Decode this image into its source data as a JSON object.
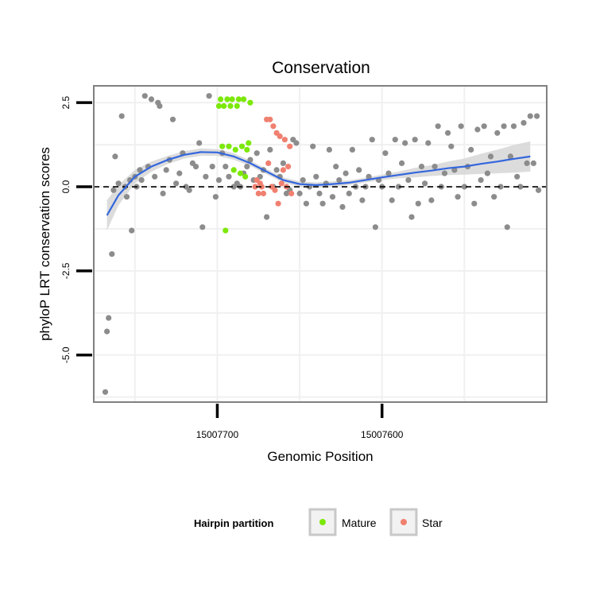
{
  "chart_data": {
    "type": "scatter",
    "title": "Conservation",
    "xlabel": "Genomic Position",
    "ylabel": "phyloP LRT conservation scores",
    "x_reversed": true,
    "xlim": [
      15007775,
      15007500
    ],
    "ylim": [
      -6.4,
      3.0
    ],
    "x_ticks": [
      15007700,
      15007600
    ],
    "x_tick_labels": [
      "15007700",
      "15007600"
    ],
    "y_ticks": [
      2.5,
      0.0,
      -2.5,
      -5.0
    ],
    "y_tick_labels": [
      "2.5",
      "0.0",
      "-2.5",
      "-5.0"
    ],
    "reference_line": {
      "y": 0,
      "style": "dashed"
    },
    "legend": {
      "title": "Hairpin partition",
      "position": "bottom",
      "entries": [
        {
          "label": "Mature",
          "color": "#7CE80A"
        },
        {
          "label": "Star",
          "color": "#F08070"
        }
      ]
    },
    "colors": {
      "other": "#8C8C8C",
      "mature": "#7CE80A",
      "star": "#F08070",
      "smooth": "#3366DD",
      "band": "#D6D6D6",
      "grid": "#F0F0F0",
      "panel_border": "#808080"
    },
    "smooth": {
      "method": "loess",
      "x": [
        15007767,
        15007760,
        15007750,
        15007740,
        15007730,
        15007720,
        15007710,
        15007700,
        15007690,
        15007680,
        15007670,
        15007660,
        15007650,
        15007640,
        15007630,
        15007620,
        15007610,
        15007600,
        15007590,
        15007580,
        15007570,
        15007560,
        15007550,
        15007540,
        15007530,
        15007520,
        15007510
      ],
      "y": [
        -0.85,
        -0.25,
        0.3,
        0.6,
        0.8,
        0.95,
        1.03,
        1.02,
        0.9,
        0.7,
        0.45,
        0.2,
        0.08,
        0.05,
        0.08,
        0.12,
        0.2,
        0.28,
        0.35,
        0.42,
        0.48,
        0.55,
        0.6,
        0.68,
        0.75,
        0.83,
        0.9
      ],
      "lower": [
        -1.3,
        -0.55,
        0.1,
        0.45,
        0.68,
        0.84,
        0.92,
        0.92,
        0.8,
        0.62,
        0.37,
        0.12,
        0.0,
        -0.03,
        0.0,
        0.05,
        0.13,
        0.2,
        0.25,
        0.28,
        0.32,
        0.35,
        0.36,
        0.38,
        0.4,
        0.42,
        0.45
      ],
      "upper": [
        -0.4,
        0.05,
        0.5,
        0.75,
        0.92,
        1.06,
        1.14,
        1.12,
        1.0,
        0.78,
        0.53,
        0.28,
        0.16,
        0.13,
        0.16,
        0.19,
        0.27,
        0.36,
        0.45,
        0.56,
        0.64,
        0.75,
        0.84,
        0.98,
        1.1,
        1.24,
        1.35
      ]
    },
    "series": [
      {
        "name": "Other",
        "points": [
          [
            15007768,
            -6.1
          ],
          [
            15007767,
            -4.3
          ],
          [
            15007766,
            -3.9
          ],
          [
            15007764,
            -2.0
          ],
          [
            15007763,
            -0.1
          ],
          [
            15007762,
            0.9
          ],
          [
            15007760,
            0.1
          ],
          [
            15007758,
            2.1
          ],
          [
            15007756,
            0.0
          ],
          [
            15007755,
            -0.3
          ],
          [
            15007753,
            0.2
          ],
          [
            15007752,
            -1.3
          ],
          [
            15007750,
            0.3
          ],
          [
            15007749,
            0.0
          ],
          [
            15007747,
            0.5
          ],
          [
            15007746,
            0.2
          ],
          [
            15007744,
            2.7
          ],
          [
            15007742,
            0.6
          ],
          [
            15007740,
            2.6
          ],
          [
            15007738,
            0.3
          ],
          [
            15007736,
            2.5
          ],
          [
            15007735,
            2.4
          ],
          [
            15007733,
            -0.2
          ],
          [
            15007731,
            0.5
          ],
          [
            15007729,
            0.8
          ],
          [
            15007727,
            2.0
          ],
          [
            15007725,
            0.1
          ],
          [
            15007723,
            0.4
          ],
          [
            15007721,
            1.0
          ],
          [
            15007719,
            0.0
          ],
          [
            15007717,
            -0.1
          ],
          [
            15007715,
            0.7
          ],
          [
            15007713,
            0.6
          ],
          [
            15007711,
            1.3
          ],
          [
            15007709,
            -1.2
          ],
          [
            15007707,
            0.3
          ],
          [
            15007705,
            2.7
          ],
          [
            15007703,
            0.6
          ],
          [
            15007701,
            -0.3
          ],
          [
            15007699,
            0.2
          ],
          [
            15007697,
            1.0
          ],
          [
            15007695,
            0.6
          ],
          [
            15007693,
            0.3
          ],
          [
            15007690,
            0.0
          ],
          [
            15007688,
            0.1
          ],
          [
            15007686,
            0.0
          ],
          [
            15007684,
            0.4
          ],
          [
            15007682,
            0.6
          ],
          [
            15007680,
            0.8
          ],
          [
            15007678,
            0.2
          ],
          [
            15007676,
            1.0
          ],
          [
            15007674,
            0.3
          ],
          [
            15007672,
            0.5
          ],
          [
            15007670,
            -0.9
          ],
          [
            15007668,
            1.1
          ],
          [
            15007666,
            0.0
          ],
          [
            15007664,
            0.5
          ],
          [
            15007662,
            0.3
          ],
          [
            15007660,
            0.7
          ],
          [
            15007658,
            -0.2
          ],
          [
            15007656,
            -0.1
          ],
          [
            15007654,
            1.4
          ],
          [
            15007652,
            1.3
          ],
          [
            15007650,
            -0.2
          ],
          [
            15007648,
            0.2
          ],
          [
            15007646,
            -0.5
          ],
          [
            15007644,
            0.0
          ],
          [
            15007642,
            1.2
          ],
          [
            15007640,
            0.3
          ],
          [
            15007638,
            -0.2
          ],
          [
            15007636,
            -0.5
          ],
          [
            15007634,
            0.1
          ],
          [
            15007632,
            1.1
          ],
          [
            15007630,
            -0.3
          ],
          [
            15007628,
            0.6
          ],
          [
            15007626,
            0.2
          ],
          [
            15007624,
            -0.6
          ],
          [
            15007622,
            0.4
          ],
          [
            15007620,
            -0.2
          ],
          [
            15007618,
            1.1
          ],
          [
            15007616,
            0.0
          ],
          [
            15007614,
            0.5
          ],
          [
            15007612,
            -0.4
          ],
          [
            15007610,
            0.0
          ],
          [
            15007608,
            0.3
          ],
          [
            15007606,
            1.4
          ],
          [
            15007604,
            -1.2
          ],
          [
            15007602,
            0.2
          ],
          [
            15007600,
            0.0
          ],
          [
            15007598,
            1.0
          ],
          [
            15007596,
            0.4
          ],
          [
            15007594,
            -0.4
          ],
          [
            15007592,
            1.4
          ],
          [
            15007590,
            0.0
          ],
          [
            15007588,
            0.7
          ],
          [
            15007586,
            1.3
          ],
          [
            15007584,
            0.2
          ],
          [
            15007582,
            -0.9
          ],
          [
            15007580,
            1.4
          ],
          [
            15007578,
            -0.5
          ],
          [
            15007576,
            0.6
          ],
          [
            15007574,
            0.1
          ],
          [
            15007572,
            1.3
          ],
          [
            15007570,
            -0.4
          ],
          [
            15007568,
            0.6
          ],
          [
            15007566,
            1.8
          ],
          [
            15007564,
            0.0
          ],
          [
            15007562,
            0.4
          ],
          [
            15007560,
            1.6
          ],
          [
            15007558,
            1.2
          ],
          [
            15007556,
            0.5
          ],
          [
            15007554,
            -0.3
          ],
          [
            15007552,
            1.8
          ],
          [
            15007550,
            0.0
          ],
          [
            15007548,
            0.6
          ],
          [
            15007546,
            1.1
          ],
          [
            15007544,
            -0.5
          ],
          [
            15007542,
            1.7
          ],
          [
            15007540,
            0.2
          ],
          [
            15007538,
            1.8
          ],
          [
            15007536,
            0.4
          ],
          [
            15007534,
            0.9
          ],
          [
            15007532,
            -0.3
          ],
          [
            15007530,
            1.6
          ],
          [
            15007528,
            0.0
          ],
          [
            15007526,
            1.8
          ],
          [
            15007524,
            -1.2
          ],
          [
            15007522,
            0.9
          ],
          [
            15007520,
            1.8
          ],
          [
            15007518,
            0.3
          ],
          [
            15007516,
            0.0
          ],
          [
            15007514,
            1.9
          ],
          [
            15007512,
            0.7
          ],
          [
            15007510,
            2.1
          ],
          [
            15007508,
            0.7
          ],
          [
            15007506,
            2.1
          ],
          [
            15007505,
            -0.1
          ]
        ]
      },
      {
        "name": "Mature",
        "points": [
          [
            15007699,
            2.4
          ],
          [
            15007698,
            2.6
          ],
          [
            15007697,
            1.2
          ],
          [
            15007696,
            2.4
          ],
          [
            15007695,
            -1.3
          ],
          [
            15007694,
            2.6
          ],
          [
            15007693,
            1.2
          ],
          [
            15007692,
            2.4
          ],
          [
            15007691,
            2.6
          ],
          [
            15007690,
            0.5
          ],
          [
            15007689,
            1.1
          ],
          [
            15007688,
            2.4
          ],
          [
            15007687,
            2.6
          ],
          [
            15007686,
            0.4
          ],
          [
            15007685,
            1.2
          ],
          [
            15007684,
            2.6
          ],
          [
            15007683,
            0.3
          ],
          [
            15007682,
            1.1
          ],
          [
            15007681,
            1.3
          ],
          [
            15007680,
            2.5
          ]
        ]
      },
      {
        "name": "Star",
        "points": [
          [
            15007677,
            0.0
          ],
          [
            15007676,
            0.2
          ],
          [
            15007675,
            -0.2
          ],
          [
            15007674,
            0.1
          ],
          [
            15007673,
            0.0
          ],
          [
            15007672,
            -0.2
          ],
          [
            15007670,
            2.0
          ],
          [
            15007669,
            0.7
          ],
          [
            15007668,
            2.0
          ],
          [
            15007667,
            0.0
          ],
          [
            15007666,
            1.8
          ],
          [
            15007665,
            -0.1
          ],
          [
            15007664,
            1.6
          ],
          [
            15007663,
            -0.5
          ],
          [
            15007662,
            1.5
          ],
          [
            15007661,
            0.1
          ],
          [
            15007660,
            0.5
          ],
          [
            15007659,
            1.4
          ],
          [
            15007658,
            0.0
          ],
          [
            15007657,
            0.6
          ],
          [
            15007656,
            1.2
          ],
          [
            15007655,
            -0.2
          ]
        ]
      }
    ]
  }
}
